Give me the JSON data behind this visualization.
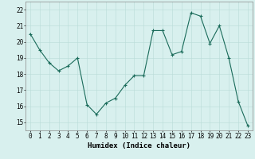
{
  "x": [
    0,
    1,
    2,
    3,
    4,
    5,
    6,
    7,
    8,
    9,
    10,
    11,
    12,
    13,
    14,
    15,
    16,
    17,
    18,
    19,
    20,
    21,
    22,
    23
  ],
  "y": [
    20.5,
    19.5,
    18.7,
    18.2,
    18.5,
    19.0,
    16.1,
    15.5,
    16.2,
    16.5,
    17.3,
    17.9,
    17.9,
    20.7,
    20.7,
    19.2,
    19.4,
    21.8,
    21.6,
    19.9,
    21.0,
    19.0,
    16.3,
    14.8
  ],
  "line_color": "#1a6b5a",
  "marker": "+",
  "marker_size": 3,
  "marker_lw": 0.8,
  "line_width": 0.8,
  "bg_color": "#d8f0ee",
  "grid_color": "#b8dcd8",
  "xlabel": "Humidex (Indice chaleur)",
  "ylim": [
    14.5,
    22.5
  ],
  "xlim": [
    -0.5,
    23.5
  ],
  "yticks": [
    15,
    16,
    17,
    18,
    19,
    20,
    21,
    22
  ],
  "xticks": [
    0,
    1,
    2,
    3,
    4,
    5,
    6,
    7,
    8,
    9,
    10,
    11,
    12,
    13,
    14,
    15,
    16,
    17,
    18,
    19,
    20,
    21,
    22,
    23
  ],
  "font_size": 5.5,
  "xlabel_fontsize": 6.5,
  "xlabel_fontweight": "bold",
  "spine_color": "#888888",
  "spine_lw": 0.5
}
